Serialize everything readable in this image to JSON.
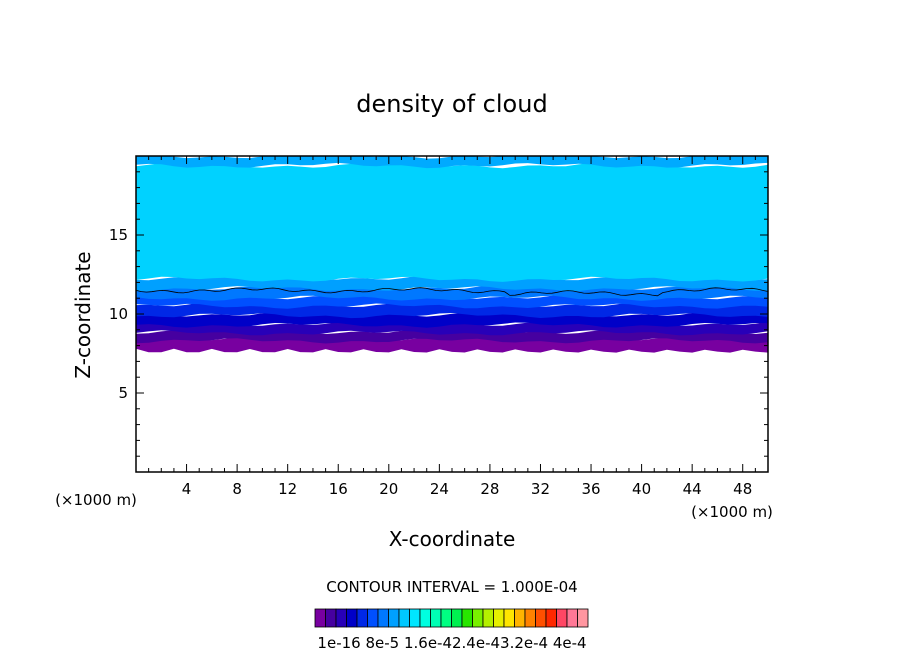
{
  "chart_data": {
    "type": "heatmap",
    "title": "density of cloud",
    "xlabel": "X-coordinate",
    "ylabel": "Z-coordinate",
    "x_unit": "(×1000 m)",
    "y_unit": "(×1000 m)",
    "xlim": [
      0,
      50
    ],
    "ylim": [
      0,
      20
    ],
    "x_ticks": [
      4,
      8,
      12,
      16,
      20,
      24,
      28,
      32,
      36,
      40,
      44,
      48
    ],
    "y_ticks": [
      5,
      10,
      15
    ],
    "x_tick_labels": [
      "4",
      "8",
      "12",
      "16",
      "20",
      "24",
      "28",
      "32",
      "36",
      "40",
      "44",
      "48"
    ],
    "y_tick_labels": [
      "5",
      "10",
      "15"
    ],
    "contour_interval_text": "CONTOUR INTERVAL = 1.000E-04",
    "colorbar": {
      "colors": [
        "#7800a0",
        "#4600a0",
        "#2800b8",
        "#0000c8",
        "#0028e6",
        "#0050ff",
        "#0078ff",
        "#00a0ff",
        "#00c8ff",
        "#00e6ff",
        "#00ffe0",
        "#00ffb4",
        "#00ff82",
        "#00f050",
        "#28e600",
        "#78f000",
        "#b4f000",
        "#e6f000",
        "#ffe600",
        "#ffb400",
        "#ff8200",
        "#ff5000",
        "#ff2800",
        "#ff4664",
        "#ff7896",
        "#ff96a0"
      ],
      "tick_labels": [
        "1e-16",
        "8e-5",
        "1.6e-4",
        "2.4e-4",
        "3.2e-4",
        "4e-4"
      ],
      "tick_text": "1e-16 8e-5 1.6e-42.4e-43.2e-4 4e-4"
    },
    "layers": [
      {
        "z_bottom": 7.8,
        "z_top": 8.5,
        "color": "#7800a0"
      },
      {
        "z_bottom": 8.3,
        "z_top": 8.9,
        "color": "#4600a0"
      },
      {
        "z_bottom": 8.8,
        "z_top": 9.4,
        "color": "#2800b8"
      },
      {
        "z_bottom": 9.3,
        "z_top": 10.0,
        "color": "#0000c8"
      },
      {
        "z_bottom": 9.9,
        "z_top": 10.6,
        "color": "#0028e6"
      },
      {
        "z_bottom": 10.5,
        "z_top": 11.1,
        "color": "#0050ff"
      },
      {
        "z_bottom": 11.0,
        "z_top": 11.7,
        "color": "#0078ff"
      },
      {
        "z_bottom": 11.6,
        "z_top": 12.3,
        "color": "#00a0ff"
      },
      {
        "z_bottom": 12.2,
        "z_top": 19.4,
        "color": "#00d2ff"
      },
      {
        "z_bottom": 19.4,
        "z_top": 20.0,
        "color": "#00aaff"
      }
    ],
    "contour_line_z": 11.5,
    "legend": "bottom-center"
  }
}
